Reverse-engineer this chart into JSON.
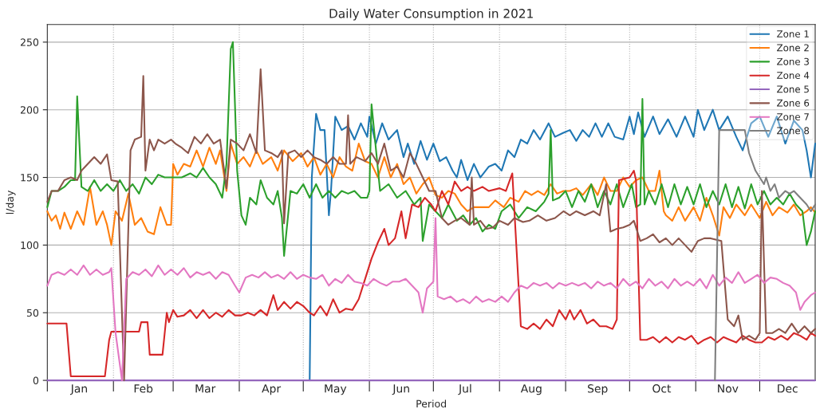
{
  "chart_data": {
    "type": "line",
    "title": "Daily Water Consumption in 2021",
    "xlabel": "Period",
    "ylabel": "l/day",
    "xlim": [
      "2021-01-01",
      "2021-12-27"
    ],
    "ylim": [
      0,
      263
    ],
    "yticks": [
      0,
      50,
      100,
      150,
      200,
      250
    ],
    "xticks": [
      {
        "value": "2021-01-01",
        "label": null
      },
      {
        "value": "2021-01-16",
        "label": "Jan"
      },
      {
        "value": "2021-02-01",
        "label": null
      },
      {
        "value": "2021-02-15",
        "label": "Feb"
      },
      {
        "value": "2021-03-01",
        "label": null
      },
      {
        "value": "2021-03-16",
        "label": "Mar"
      },
      {
        "value": "2021-04-01",
        "label": null
      },
      {
        "value": "2021-04-16",
        "label": "Apr"
      },
      {
        "value": "2021-05-01",
        "label": null
      },
      {
        "value": "2021-05-16",
        "label": "May"
      },
      {
        "value": "2021-06-01",
        "label": null
      },
      {
        "value": "2021-06-16",
        "label": "Jun"
      },
      {
        "value": "2021-07-01",
        "label": null
      },
      {
        "value": "2021-07-16",
        "label": "Jul"
      },
      {
        "value": "2021-08-01",
        "label": null
      },
      {
        "value": "2021-08-16",
        "label": "Aug"
      },
      {
        "value": "2021-09-01",
        "label": null
      },
      {
        "value": "2021-09-16",
        "label": "Sep"
      },
      {
        "value": "2021-10-01",
        "label": null
      },
      {
        "value": "2021-10-16",
        "label": "Oct"
      },
      {
        "value": "2021-11-01",
        "label": null
      },
      {
        "value": "2021-11-16",
        "label": "Nov"
      },
      {
        "value": "2021-12-01",
        "label": null
      },
      {
        "value": "2021-12-14",
        "label": "Dec"
      }
    ],
    "grid": true,
    "legend": "top right",
    "marker": "none",
    "line_style": "solid",
    "series": [
      {
        "name": "Zone 1",
        "color": "#1f77b4",
        "x": [
          "2021-05-04",
          "2021-05-05",
          "2021-05-07",
          "2021-05-09",
          "2021-05-11",
          "2021-05-13",
          "2021-05-14",
          "2021-05-16",
          "2021-05-19",
          "2021-05-22",
          "2021-05-25",
          "2021-05-28",
          "2021-05-31",
          "2021-06-01",
          "2021-06-04",
          "2021-06-07",
          "2021-06-10",
          "2021-06-14",
          "2021-06-17",
          "2021-06-19",
          "2021-06-22",
          "2021-06-25",
          "2021-06-28",
          "2021-07-01",
          "2021-07-04",
          "2021-07-07",
          "2021-07-10",
          "2021-07-12",
          "2021-07-14",
          "2021-07-17",
          "2021-07-20",
          "2021-07-23",
          "2021-07-27",
          "2021-07-30",
          "2021-08-02",
          "2021-08-05",
          "2021-08-08",
          "2021-08-11",
          "2021-08-14",
          "2021-08-17",
          "2021-08-20",
          "2021-08-24",
          "2021-08-27",
          "2021-08-31",
          "2021-09-03",
          "2021-09-06",
          "2021-09-09",
          "2021-09-12",
          "2021-09-15",
          "2021-09-18",
          "2021-09-21",
          "2021-09-24",
          "2021-09-28",
          "2021-10-01",
          "2021-10-03",
          "2021-10-05",
          "2021-10-08",
          "2021-10-12",
          "2021-10-15",
          "2021-10-19",
          "2021-10-23",
          "2021-10-27",
          "2021-10-31",
          "2021-11-02",
          "2021-11-05",
          "2021-11-09",
          "2021-11-12",
          "2021-11-16",
          "2021-11-20",
          "2021-11-23",
          "2021-11-27",
          "2021-12-01",
          "2021-12-05",
          "2021-12-09",
          "2021-12-13",
          "2021-12-17",
          "2021-12-21",
          "2021-12-23",
          "2021-12-25",
          "2021-12-27"
        ],
        "values": [
          0,
          150,
          197,
          185,
          185,
          122,
          140,
          195,
          185,
          188,
          178,
          190,
          180,
          195,
          175,
          190,
          178,
          185,
          165,
          175,
          160,
          177,
          163,
          175,
          162,
          165,
          155,
          150,
          163,
          148,
          160,
          150,
          158,
          160,
          155,
          170,
          165,
          178,
          175,
          185,
          178,
          190,
          180,
          183,
          185,
          177,
          185,
          180,
          190,
          180,
          190,
          180,
          178,
          195,
          182,
          198,
          180,
          195,
          182,
          193,
          180,
          195,
          180,
          200,
          185,
          200,
          185,
          195,
          180,
          170,
          190,
          195,
          180,
          195,
          175,
          192,
          185,
          170,
          150,
          175
        ]
      },
      {
        "name": "Zone 2",
        "color": "#ff7f0e",
        "x": [
          "2021-01-01",
          "2021-01-03",
          "2021-01-05",
          "2021-01-07",
          "2021-01-09",
          "2021-01-12",
          "2021-01-15",
          "2021-01-18",
          "2021-01-21",
          "2021-01-24",
          "2021-01-27",
          "2021-01-29",
          "2021-01-31",
          "2021-02-02",
          "2021-02-05",
          "2021-02-08",
          "2021-02-11",
          "2021-02-14",
          "2021-02-17",
          "2021-02-20",
          "2021-02-23",
          "2021-02-26",
          "2021-02-28",
          "2021-03-01",
          "2021-03-03",
          "2021-03-06",
          "2021-03-09",
          "2021-03-12",
          "2021-03-15",
          "2021-03-18",
          "2021-03-21",
          "2021-03-23",
          "2021-03-26",
          "2021-03-28",
          "2021-03-31",
          "2021-04-03",
          "2021-04-06",
          "2021-04-09",
          "2021-04-12",
          "2021-04-16",
          "2021-04-19",
          "2021-04-22",
          "2021-04-26",
          "2021-04-30",
          "2021-05-03",
          "2021-05-06",
          "2021-05-09",
          "2021-05-12",
          "2021-05-15",
          "2021-05-18",
          "2021-05-21",
          "2021-05-24",
          "2021-05-27",
          "2021-05-30",
          "2021-06-02",
          "2021-06-05",
          "2021-06-08",
          "2021-06-11",
          "2021-06-14",
          "2021-06-17",
          "2021-06-20",
          "2021-06-23",
          "2021-06-26",
          "2021-06-29",
          "2021-07-02",
          "2021-07-05",
          "2021-07-08",
          "2021-07-11",
          "2021-07-14",
          "2021-07-17",
          "2021-07-20",
          "2021-07-23",
          "2021-07-27",
          "2021-07-30",
          "2021-08-03",
          "2021-08-06",
          "2021-08-10",
          "2021-08-13",
          "2021-08-16",
          "2021-08-19",
          "2021-08-22",
          "2021-08-25",
          "2021-08-28",
          "2021-08-31",
          "2021-09-03",
          "2021-09-06",
          "2021-09-09",
          "2021-09-13",
          "2021-09-16",
          "2021-09-19",
          "2021-09-22",
          "2021-09-25",
          "2021-09-28",
          "2021-10-01",
          "2021-10-04",
          "2021-10-07",
          "2021-10-10",
          "2021-10-13",
          "2021-10-15",
          "2021-10-17",
          "2021-10-18",
          "2021-10-21",
          "2021-10-24",
          "2021-10-27",
          "2021-10-31",
          "2021-11-03",
          "2021-11-06",
          "2021-11-09",
          "2021-11-12",
          "2021-11-14",
          "2021-11-17",
          "2021-11-20",
          "2021-11-24",
          "2021-11-27",
          "2021-12-01",
          "2021-12-04",
          "2021-12-07",
          "2021-12-10",
          "2021-12-14",
          "2021-12-17",
          "2021-12-20",
          "2021-12-23",
          "2021-12-25",
          "2021-12-27"
        ],
        "values": [
          125,
          118,
          122,
          112,
          124,
          112,
          125,
          115,
          143,
          115,
          125,
          115,
          100,
          125,
          118,
          138,
          115,
          120,
          110,
          108,
          128,
          115,
          115,
          160,
          152,
          160,
          158,
          170,
          158,
          172,
          160,
          170,
          140,
          175,
          160,
          165,
          158,
          170,
          160,
          165,
          155,
          170,
          162,
          168,
          158,
          165,
          152,
          160,
          150,
          165,
          158,
          155,
          175,
          162,
          160,
          150,
          165,
          150,
          160,
          145,
          150,
          138,
          145,
          150,
          137,
          135,
          140,
          138,
          130,
          125,
          128,
          128,
          128,
          133,
          128,
          135,
          132,
          140,
          137,
          140,
          137,
          145,
          138,
          140,
          140,
          142,
          137,
          145,
          137,
          150,
          140,
          140,
          150,
          143,
          148,
          150,
          140,
          140,
          155,
          125,
          122,
          118,
          128,
          118,
          128,
          118,
          135,
          122,
          107,
          128,
          120,
          130,
          122,
          130,
          120,
          132,
          122,
          128,
          124,
          130,
          122,
          125,
          128,
          124
        ]
      },
      {
        "name": "Zone 3",
        "color": "#2ca02c",
        "x": [
          "2021-01-01",
          "2021-01-03",
          "2021-01-06",
          "2021-01-09",
          "2021-01-12",
          "2021-01-14",
          "2021-01-15",
          "2021-01-17",
          "2021-01-20",
          "2021-01-23",
          "2021-01-26",
          "2021-01-29",
          "2021-02-01",
          "2021-02-04",
          "2021-02-07",
          "2021-02-10",
          "2021-02-13",
          "2021-02-16",
          "2021-02-19",
          "2021-02-22",
          "2021-02-25",
          "2021-03-01",
          "2021-03-05",
          "2021-03-09",
          "2021-03-12",
          "2021-03-15",
          "2021-03-18",
          "2021-03-21",
          "2021-03-24",
          "2021-03-26",
          "2021-03-28",
          "2021-03-29",
          "2021-03-31",
          "2021-04-02",
          "2021-04-04",
          "2021-04-06",
          "2021-04-09",
          "2021-04-11",
          "2021-04-14",
          "2021-04-17",
          "2021-04-19",
          "2021-04-21",
          "2021-04-22",
          "2021-04-25",
          "2021-04-28",
          "2021-05-01",
          "2021-05-04",
          "2021-05-07",
          "2021-05-10",
          "2021-05-13",
          "2021-05-16",
          "2021-05-19",
          "2021-05-22",
          "2021-05-25",
          "2021-05-28",
          "2021-05-31",
          "2021-06-01",
          "2021-06-02",
          "2021-06-06",
          "2021-06-10",
          "2021-06-14",
          "2021-06-18",
          "2021-06-22",
          "2021-06-25",
          "2021-06-26",
          "2021-06-29",
          "2021-07-02",
          "2021-07-05",
          "2021-07-08",
          "2021-07-12",
          "2021-07-15",
          "2021-07-18",
          "2021-07-21",
          "2021-07-24",
          "2021-07-27",
          "2021-07-30",
          "2021-08-02",
          "2021-08-06",
          "2021-08-10",
          "2021-08-14",
          "2021-08-18",
          "2021-08-22",
          "2021-08-24",
          "2021-08-25",
          "2021-08-26",
          "2021-08-29",
          "2021-09-01",
          "2021-09-04",
          "2021-09-07",
          "2021-09-10",
          "2021-09-13",
          "2021-09-16",
          "2021-09-19",
          "2021-09-22",
          "2021-09-25",
          "2021-09-28",
          "2021-10-02",
          "2021-10-04",
          "2021-10-06",
          "2021-10-07",
          "2021-10-08",
          "2021-10-10",
          "2021-10-13",
          "2021-10-16",
          "2021-10-19",
          "2021-10-22",
          "2021-10-25",
          "2021-10-28",
          "2021-10-31",
          "2021-11-03",
          "2021-11-06",
          "2021-11-09",
          "2021-11-12",
          "2021-11-15",
          "2021-11-18",
          "2021-11-21",
          "2021-11-24",
          "2021-11-27",
          "2021-11-30",
          "2021-12-03",
          "2021-12-06",
          "2021-12-09",
          "2021-12-12",
          "2021-12-15",
          "2021-12-18",
          "2021-12-21",
          "2021-12-23",
          "2021-12-25",
          "2021-12-27"
        ],
        "values": [
          128,
          140,
          140,
          143,
          148,
          148,
          210,
          143,
          140,
          148,
          140,
          145,
          140,
          148,
          140,
          145,
          138,
          150,
          145,
          152,
          150,
          150,
          150,
          153,
          150,
          157,
          150,
          145,
          135,
          160,
          245,
          250,
          155,
          122,
          115,
          135,
          130,
          148,
          135,
          130,
          140,
          120,
          92,
          140,
          138,
          145,
          135,
          145,
          135,
          140,
          135,
          140,
          138,
          140,
          135,
          135,
          140,
          204,
          140,
          145,
          135,
          140,
          130,
          135,
          103,
          130,
          125,
          120,
          130,
          118,
          122,
          115,
          120,
          110,
          115,
          112,
          125,
          130,
          120,
          128,
          125,
          132,
          138,
          185,
          133,
          135,
          140,
          128,
          140,
          132,
          145,
          128,
          140,
          130,
          145,
          128,
          145,
          128,
          130,
          208,
          130,
          140,
          130,
          145,
          128,
          145,
          130,
          143,
          130,
          145,
          128,
          140,
          130,
          145,
          128,
          143,
          127,
          145,
          130,
          140,
          130,
          135,
          130,
          138,
          130,
          125,
          100,
          110,
          125
        ]
      },
      {
        "name": "Zone 4",
        "color": "#d62728",
        "x": [
          "2021-01-01",
          "2021-01-10",
          "2021-01-12",
          "2021-01-28",
          "2021-01-30",
          "2021-01-31",
          "2021-02-13",
          "2021-02-14",
          "2021-02-17",
          "2021-02-18",
          "2021-02-24",
          "2021-02-26",
          "2021-02-27",
          "2021-03-01",
          "2021-03-03",
          "2021-03-06",
          "2021-03-09",
          "2021-03-12",
          "2021-03-15",
          "2021-03-18",
          "2021-03-21",
          "2021-03-24",
          "2021-03-27",
          "2021-03-30",
          "2021-04-02",
          "2021-04-05",
          "2021-04-08",
          "2021-04-11",
          "2021-04-14",
          "2021-04-17",
          "2021-04-19",
          "2021-04-22",
          "2021-04-25",
          "2021-04-28",
          "2021-05-01",
          "2021-05-04",
          "2021-05-06",
          "2021-05-09",
          "2021-05-12",
          "2021-05-15",
          "2021-05-18",
          "2021-05-21",
          "2021-05-24",
          "2021-05-27",
          "2021-05-30",
          "2021-06-02",
          "2021-06-05",
          "2021-06-08",
          "2021-06-10",
          "2021-06-13",
          "2021-06-16",
          "2021-06-18",
          "2021-06-21",
          "2021-06-24",
          "2021-06-27",
          "2021-06-30",
          "2021-07-02",
          "2021-07-05",
          "2021-07-08",
          "2021-07-11",
          "2021-07-14",
          "2021-07-17",
          "2021-07-20",
          "2021-07-24",
          "2021-07-27",
          "2021-08-01",
          "2021-08-04",
          "2021-08-07",
          "2021-08-11",
          "2021-08-14",
          "2021-08-17",
          "2021-08-20",
          "2021-08-23",
          "2021-08-26",
          "2021-08-29",
          "2021-09-01",
          "2021-09-03",
          "2021-09-05",
          "2021-09-08",
          "2021-09-11",
          "2021-09-14",
          "2021-09-17",
          "2021-09-20",
          "2021-09-23",
          "2021-09-25",
          "2021-09-26",
          "2021-10-01",
          "2021-10-03",
          "2021-10-04",
          "2021-10-06",
          "2021-10-09",
          "2021-10-12",
          "2021-10-15",
          "2021-10-18",
          "2021-10-21",
          "2021-10-24",
          "2021-10-27",
          "2021-10-30",
          "2021-11-02",
          "2021-11-05",
          "2021-11-08",
          "2021-11-11",
          "2021-11-14",
          "2021-11-17",
          "2021-11-20",
          "2021-11-23",
          "2021-11-26",
          "2021-11-29",
          "2021-12-02",
          "2021-12-05",
          "2021-12-08",
          "2021-12-11",
          "2021-12-14",
          "2021-12-17",
          "2021-12-20",
          "2021-12-23",
          "2021-12-25",
          "2021-12-27"
        ],
        "values": [
          42,
          42,
          3,
          3,
          30,
          36,
          36,
          43,
          43,
          19,
          19,
          50,
          43,
          52,
          47,
          48,
          52,
          46,
          52,
          46,
          50,
          47,
          52,
          48,
          48,
          50,
          48,
          52,
          48,
          63,
          52,
          58,
          53,
          58,
          55,
          50,
          48,
          55,
          48,
          60,
          50,
          53,
          52,
          60,
          75,
          90,
          102,
          112,
          100,
          105,
          125,
          105,
          130,
          128,
          135,
          130,
          125,
          140,
          130,
          147,
          140,
          143,
          140,
          143,
          140,
          142,
          140,
          153,
          40,
          38,
          42,
          38,
          45,
          40,
          52,
          45,
          52,
          45,
          52,
          42,
          45,
          40,
          40,
          38,
          45,
          148,
          150,
          155,
          148,
          30,
          30,
          32,
          28,
          32,
          28,
          32,
          30,
          33,
          27,
          30,
          32,
          28,
          32,
          30,
          28,
          33,
          30,
          28,
          28,
          32,
          30,
          33,
          30,
          35,
          33,
          30,
          35,
          33
        ]
      },
      {
        "name": "Zone 5",
        "color": "#9467bd",
        "x": [
          "2021-01-01",
          "2021-02-01",
          "2021-03-01",
          "2021-04-01",
          "2021-05-01",
          "2021-06-01",
          "2021-07-01",
          "2021-08-01",
          "2021-09-01",
          "2021-10-01",
          "2021-11-01",
          "2021-12-01",
          "2021-12-27"
        ],
        "values": [
          0,
          0,
          0,
          0,
          0,
          0,
          0,
          0,
          0,
          0,
          0,
          0,
          0
        ]
      },
      {
        "name": "Zone 6",
        "color": "#8c564b",
        "x": [
          "2021-01-01",
          "2021-01-03",
          "2021-01-06",
          "2021-01-09",
          "2021-01-12",
          "2021-01-15",
          "2021-01-17",
          "2021-01-20",
          "2021-01-23",
          "2021-01-26",
          "2021-01-29",
          "2021-01-31",
          "2021-02-03",
          "2021-02-06",
          "2021-02-09",
          "2021-02-11",
          "2021-02-14",
          "2021-02-15",
          "2021-02-16",
          "2021-02-18",
          "2021-02-20",
          "2021-02-22",
          "2021-02-25",
          "2021-02-28",
          "2021-03-02",
          "2021-03-05",
          "2021-03-08",
          "2021-03-11",
          "2021-03-14",
          "2021-03-17",
          "2021-03-20",
          "2021-03-23",
          "2021-03-26",
          "2021-03-28",
          "2021-03-31",
          "2021-04-03",
          "2021-04-06",
          "2021-04-09",
          "2021-04-11",
          "2021-04-13",
          "2021-04-16",
          "2021-04-19",
          "2021-04-21",
          "2021-04-22",
          "2021-04-24",
          "2021-04-27",
          "2021-04-30",
          "2021-05-03",
          "2021-05-06",
          "2021-05-09",
          "2021-05-12",
          "2021-05-15",
          "2021-05-18",
          "2021-05-21",
          "2021-05-22",
          "2021-05-23",
          "2021-05-26",
          "2021-05-30",
          "2021-06-02",
          "2021-06-05",
          "2021-06-08",
          "2021-06-11",
          "2021-06-14",
          "2021-06-17",
          "2021-06-20",
          "2021-06-23",
          "2021-06-26",
          "2021-06-29",
          "2021-07-02",
          "2021-07-05",
          "2021-07-08",
          "2021-07-11",
          "2021-07-14",
          "2021-07-18",
          "2021-07-19",
          "2021-07-20",
          "2021-07-23",
          "2021-07-26",
          "2021-07-29",
          "2021-08-01",
          "2021-08-05",
          "2021-08-08",
          "2021-08-12",
          "2021-08-15",
          "2021-08-19",
          "2021-08-23",
          "2021-08-27",
          "2021-08-31",
          "2021-09-03",
          "2021-09-06",
          "2021-09-10",
          "2021-09-14",
          "2021-09-17",
          "2021-09-20",
          "2021-09-22",
          "2021-09-25",
          "2021-09-28",
          "2021-10-01",
          "2021-10-03",
          "2021-10-06",
          "2021-10-09",
          "2021-10-12",
          "2021-10-15",
          "2021-10-18",
          "2021-10-21",
          "2021-10-24",
          "2021-10-27",
          "2021-10-30",
          "2021-11-02",
          "2021-11-05",
          "2021-11-08",
          "2021-11-13",
          "2021-11-16",
          "2021-11-19",
          "2021-11-21",
          "2021-11-23",
          "2021-11-26",
          "2021-11-29",
          "2021-12-01",
          "2021-12-02",
          "2021-12-04",
          "2021-12-07",
          "2021-12-10",
          "2021-12-13",
          "2021-12-16",
          "2021-12-19",
          "2021-12-22",
          "2021-12-25",
          "2021-12-27"
        ],
        "values": [
          132,
          140,
          140,
          148,
          150,
          148,
          155,
          160,
          165,
          160,
          167,
          148,
          147,
          0,
          170,
          178,
          180,
          225,
          155,
          178,
          170,
          178,
          175,
          178,
          175,
          172,
          168,
          180,
          175,
          182,
          175,
          178,
          142,
          178,
          175,
          170,
          182,
          168,
          230,
          170,
          168,
          165,
          170,
          116,
          168,
          170,
          165,
          170,
          165,
          163,
          160,
          165,
          160,
          160,
          196,
          160,
          165,
          162,
          168,
          160,
          175,
          155,
          158,
          150,
          168,
          160,
          150,
          140,
          140,
          120,
          115,
          118,
          120,
          115,
          150,
          115,
          118,
          112,
          113,
          118,
          115,
          120,
          117,
          118,
          122,
          118,
          120,
          125,
          122,
          125,
          122,
          125,
          122,
          145,
          110,
          112,
          113,
          115,
          118,
          103,
          105,
          108,
          102,
          105,
          100,
          105,
          100,
          95,
          103,
          105,
          105,
          103,
          45,
          40,
          48,
          30,
          33,
          30,
          35,
          140,
          35,
          35,
          38,
          35,
          42,
          35,
          40,
          35,
          38
        ]
      },
      {
        "name": "Zone 7",
        "color": "#e377c2",
        "x": [
          "2021-01-01",
          "2021-01-03",
          "2021-01-06",
          "2021-01-09",
          "2021-01-12",
          "2021-01-15",
          "2021-01-18",
          "2021-01-21",
          "2021-01-24",
          "2021-01-27",
          "2021-01-30",
          "2021-01-31",
          "2021-02-02",
          "2021-02-05",
          "2021-02-07",
          "2021-02-10",
          "2021-02-13",
          "2021-02-16",
          "2021-02-19",
          "2021-02-22",
          "2021-02-25",
          "2021-02-28",
          "2021-03-03",
          "2021-03-06",
          "2021-03-09",
          "2021-03-12",
          "2021-03-15",
          "2021-03-18",
          "2021-03-21",
          "2021-03-24",
          "2021-03-27",
          "2021-03-30",
          "2021-04-01",
          "2021-04-04",
          "2021-04-07",
          "2021-04-10",
          "2021-04-13",
          "2021-04-16",
          "2021-04-19",
          "2021-04-22",
          "2021-04-25",
          "2021-04-28",
          "2021-05-01",
          "2021-05-04",
          "2021-05-07",
          "2021-05-10",
          "2021-05-13",
          "2021-05-16",
          "2021-05-19",
          "2021-05-22",
          "2021-05-25",
          "2021-05-28",
          "2021-05-31",
          "2021-06-03",
          "2021-06-06",
          "2021-06-09",
          "2021-06-12",
          "2021-06-15",
          "2021-06-18",
          "2021-06-21",
          "2021-06-24",
          "2021-06-26",
          "2021-06-28",
          "2021-07-01",
          "2021-07-02",
          "2021-07-03",
          "2021-07-06",
          "2021-07-09",
          "2021-07-12",
          "2021-07-15",
          "2021-07-18",
          "2021-07-21",
          "2021-07-24",
          "2021-07-27",
          "2021-07-30",
          "2021-08-02",
          "2021-08-05",
          "2021-08-08",
          "2021-08-11",
          "2021-08-14",
          "2021-08-17",
          "2021-08-20",
          "2021-08-23",
          "2021-08-26",
          "2021-08-29",
          "2021-09-01",
          "2021-09-04",
          "2021-09-07",
          "2021-09-10",
          "2021-09-13",
          "2021-09-16",
          "2021-09-19",
          "2021-09-22",
          "2021-09-25",
          "2021-09-28",
          "2021-10-01",
          "2021-10-04",
          "2021-10-07",
          "2021-10-10",
          "2021-10-13",
          "2021-10-16",
          "2021-10-19",
          "2021-10-22",
          "2021-10-25",
          "2021-10-28",
          "2021-10-31",
          "2021-11-03",
          "2021-11-06",
          "2021-11-09",
          "2021-11-12",
          "2021-11-15",
          "2021-11-18",
          "2021-11-21",
          "2021-11-24",
          "2021-11-27",
          "2021-11-30",
          "2021-12-03",
          "2021-12-06",
          "2021-12-09",
          "2021-12-12",
          "2021-12-15",
          "2021-12-18",
          "2021-12-20",
          "2021-12-22",
          "2021-12-25",
          "2021-12-27"
        ],
        "values": [
          70,
          78,
          80,
          78,
          82,
          78,
          85,
          78,
          82,
          78,
          80,
          83,
          35,
          0,
          75,
          80,
          78,
          82,
          77,
          85,
          78,
          82,
          78,
          83,
          76,
          80,
          78,
          80,
          75,
          80,
          78,
          70,
          65,
          76,
          78,
          76,
          80,
          76,
          78,
          75,
          80,
          75,
          78,
          76,
          75,
          78,
          70,
          75,
          72,
          78,
          73,
          72,
          70,
          75,
          72,
          70,
          73,
          73,
          75,
          70,
          65,
          50,
          68,
          73,
          120,
          62,
          60,
          62,
          58,
          60,
          57,
          62,
          58,
          60,
          58,
          62,
          58,
          65,
          70,
          68,
          72,
          70,
          72,
          68,
          72,
          70,
          72,
          70,
          72,
          68,
          73,
          70,
          72,
          68,
          75,
          70,
          73,
          68,
          75,
          70,
          73,
          68,
          75,
          70,
          73,
          70,
          75,
          68,
          78,
          70,
          76,
          72,
          80,
          72,
          75,
          78,
          72,
          76,
          75,
          72,
          70,
          65,
          52,
          58,
          63,
          65
        ]
      },
      {
        "name": "Zone 8",
        "color": "#7f7f7f",
        "x": [
          "2021-11-10",
          "2021-11-12",
          "2021-11-15",
          "2021-11-18",
          "2021-11-21",
          "2021-11-24",
          "2021-11-26",
          "2021-11-29",
          "2021-12-01",
          "2021-12-03",
          "2021-12-04",
          "2021-12-06",
          "2021-12-08",
          "2021-12-10",
          "2021-12-13",
          "2021-12-15",
          "2021-12-17",
          "2021-12-20",
          "2021-12-23",
          "2021-12-25",
          "2021-12-27"
        ],
        "values": [
          0,
          185,
          185,
          185,
          185,
          185,
          168,
          155,
          150,
          145,
          150,
          140,
          145,
          135,
          140,
          138,
          140,
          135,
          130,
          125,
          130
        ]
      }
    ]
  }
}
